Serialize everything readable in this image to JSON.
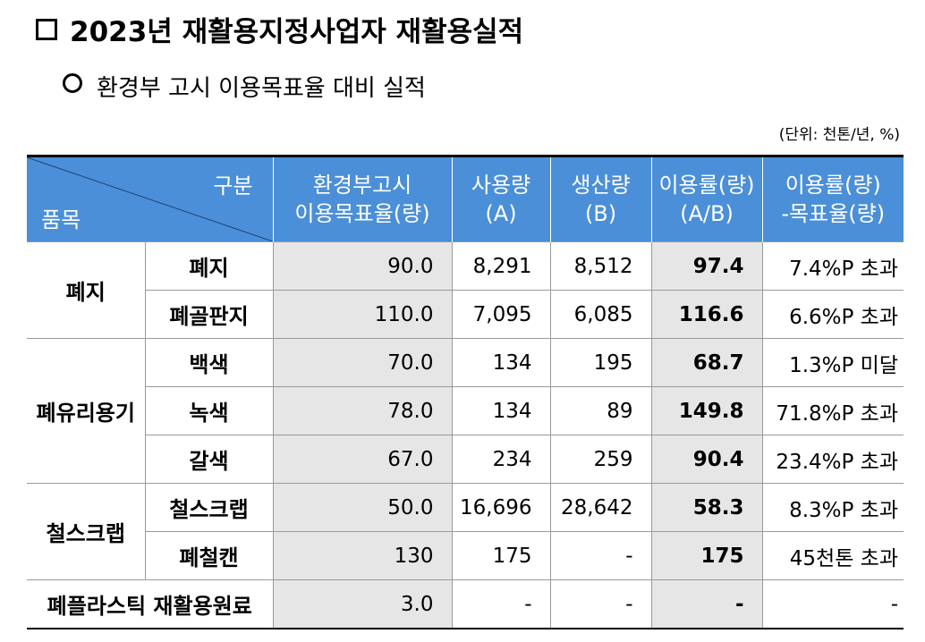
{
  "title": "2023년 재활용지정사업자 재활용실적",
  "subtitle": "환경부 고시 이용목표율 대비 실적",
  "unit_note": "(단위: 천톤/년, %)",
  "header": {
    "corner_top": "구분",
    "corner_bottom": "품목",
    "col_target_1": "환경부고시",
    "col_target_2": "이용목표율(량)",
    "col_use_1": "사용량",
    "col_use_2": "(A)",
    "col_prod_1": "생산량",
    "col_prod_2": "(B)",
    "col_rate_1": "이용률(량)",
    "col_rate_2": "(A/B)",
    "col_diff_1": "이용률(량)",
    "col_diff_2": "-목표율(량)"
  },
  "groups": {
    "g1": "폐지",
    "g2": "폐유리용기",
    "g3": "철스크랩",
    "g4": "폐플라스틱 재활용원료"
  },
  "rows": [
    {
      "item": "폐지",
      "target": "90.0",
      "use": "8,291",
      "prod": "8,512",
      "rate": "97.4",
      "diff": "7.4%P 초과"
    },
    {
      "item": "폐골판지",
      "target": "110.0",
      "use": "7,095",
      "prod": "6,085",
      "rate": "116.6",
      "diff": "6.6%P 초과"
    },
    {
      "item": "백색",
      "target": "70.0",
      "use": "134",
      "prod": "195",
      "rate": "68.7",
      "diff": "1.3%P 미달"
    },
    {
      "item": "녹색",
      "target": "78.0",
      "use": "134",
      "prod": "89",
      "rate": "149.8",
      "diff": "71.8%P 초과"
    },
    {
      "item": "갈색",
      "target": "67.0",
      "use": "234",
      "prod": "259",
      "rate": "90.4",
      "diff": "23.4%P 초과"
    },
    {
      "item": "철스크랩",
      "target": "50.0",
      "use": "16,696",
      "prod": "28,642",
      "rate": "58.3",
      "diff": "8.3%P 초과"
    },
    {
      "item": "폐철캔",
      "target": "130",
      "use": "175",
      "prod": "-",
      "rate": "175",
      "diff": "45천톤 초과"
    },
    {
      "item": "",
      "target": "3.0",
      "use": "-",
      "prod": "-",
      "rate": "-",
      "diff": "-"
    }
  ],
  "colors": {
    "header_bg": "#4b8fd8",
    "shade": "#e6e6e6"
  }
}
